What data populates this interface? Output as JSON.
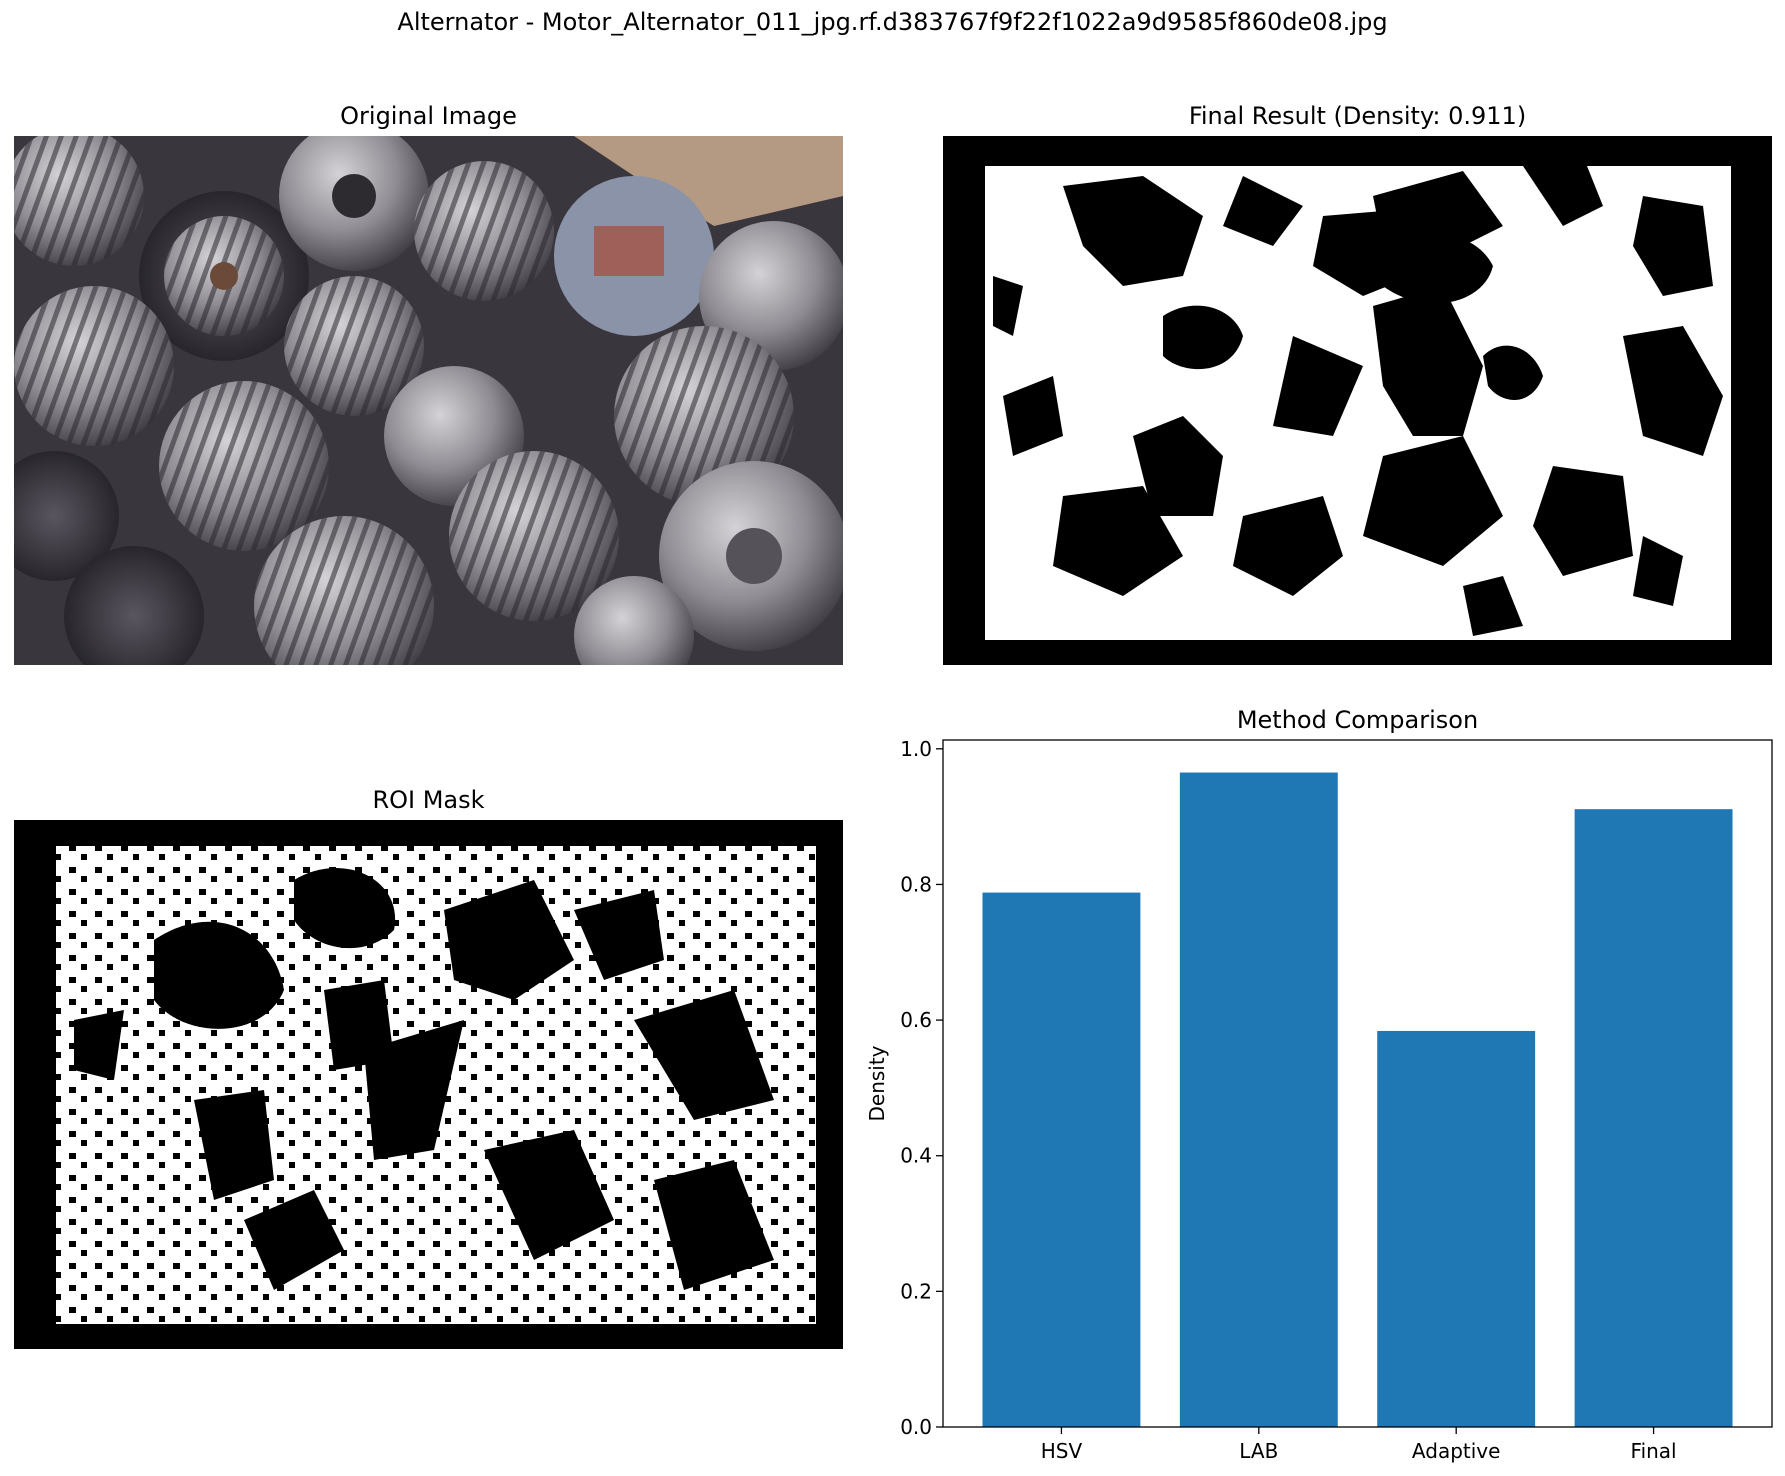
{
  "figure": {
    "suptitle": "Alternator - Motor_Alternator_011_jpg.rf.d383767f9f22f1022a9d9585f860de08.jpg"
  },
  "panels": {
    "original": {
      "title": "Original Image"
    },
    "final": {
      "title": "Final Result (Density: 0.911)"
    },
    "roi": {
      "title": "ROI Mask"
    },
    "comparison": {
      "title": "Method Comparison"
    }
  },
  "colors": {
    "bar": "#1f77b4",
    "mask_fg": "#ffffff",
    "mask_bg": "#000000"
  },
  "chart_data": {
    "type": "bar",
    "title": "Method Comparison",
    "categories": [
      "HSV",
      "LAB",
      "Adaptive",
      "Final"
    ],
    "values": [
      0.788,
      0.965,
      0.584,
      0.911
    ],
    "xlabel": "",
    "ylabel": "Density",
    "ylim": [
      0,
      1.013
    ],
    "yticks": [
      0.0,
      0.2,
      0.4,
      0.6,
      0.8,
      1.0
    ],
    "ytick_labels": [
      "0.0",
      "0.2",
      "0.4",
      "0.6",
      "0.8",
      "1.0"
    ],
    "grid": false,
    "legend": "none"
  }
}
